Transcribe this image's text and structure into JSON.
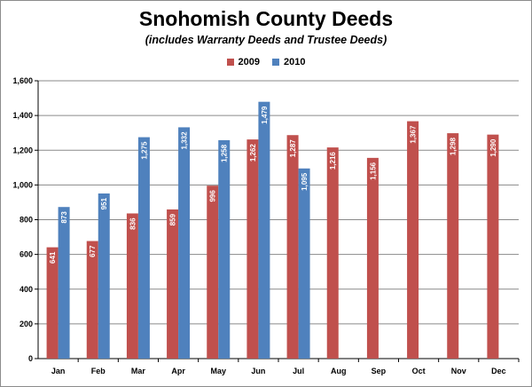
{
  "chart_data": {
    "type": "bar",
    "title": "Snohomish County Deeds",
    "subtitle": "(includes Warranty Deeds and Trustee Deeds)",
    "categories": [
      "Jan",
      "Feb",
      "Mar",
      "Apr",
      "May",
      "Jun",
      "Jul",
      "Aug",
      "Sep",
      "Oct",
      "Nov",
      "Dec"
    ],
    "series": [
      {
        "name": "2009",
        "color": "#c0504d",
        "values": [
          641,
          677,
          836,
          859,
          996,
          1262,
          1287,
          1216,
          1156,
          1367,
          1298,
          1290
        ],
        "labels": [
          "641",
          "677",
          "836",
          "859",
          "996",
          "1,262",
          "1,287",
          "1,216",
          "1,156",
          "1,367",
          "1,298",
          "1,290"
        ]
      },
      {
        "name": "2010",
        "color": "#4f81bd",
        "values": [
          873,
          951,
          1275,
          1332,
          1258,
          1479,
          1095,
          null,
          null,
          null,
          null,
          null
        ],
        "labels": [
          "873",
          "951",
          "1,275",
          "1,332",
          "1,258",
          "1,479",
          "1,095",
          null,
          null,
          null,
          null,
          null
        ]
      }
    ],
    "ylim": [
      0,
      1600
    ],
    "yticks": [
      0,
      200,
      400,
      600,
      800,
      1000,
      1200,
      1400,
      1600
    ],
    "ytick_labels": [
      "0",
      "200",
      "400",
      "600",
      "800",
      "1,000",
      "1,200",
      "1,400",
      "1,600"
    ],
    "xlabel": "",
    "ylabel": "",
    "grid": "horizontal",
    "legend": "top-center"
  }
}
